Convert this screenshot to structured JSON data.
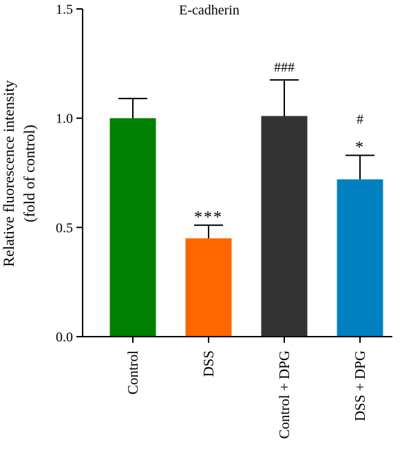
{
  "chart_data": {
    "type": "bar",
    "title": "E-cadherin",
    "ylabel_lines": [
      "Relative fluorescence intensity",
      "(fold of control)"
    ],
    "xlabel": "",
    "ylim": [
      0,
      1.5
    ],
    "yticks": [
      "0.0",
      "0.5",
      "1.0",
      "1.5"
    ],
    "ytick_values": [
      0,
      0.5,
      1.0,
      1.5
    ],
    "categories": [
      "Control",
      "DSS",
      "Control + DPG",
      "DSS + DPG"
    ],
    "values": [
      1.0,
      0.45,
      1.01,
      0.72
    ],
    "error_upper": [
      1.09,
      0.51,
      1.175,
      0.83
    ],
    "colors": [
      "#008000",
      "#ff6600",
      "#333333",
      "#0080c0"
    ],
    "annotations": [
      [],
      [
        "***"
      ],
      [
        "###"
      ],
      [
        "*",
        "#"
      ]
    ],
    "grid": false,
    "legend": "none"
  }
}
